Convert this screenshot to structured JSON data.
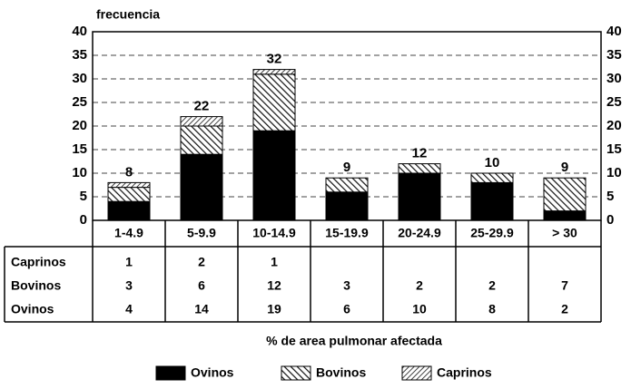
{
  "chart_data": {
    "type": "stacked_bar",
    "y_label": "frecuencia",
    "x_label": "% de area pulmonar afectada",
    "categories": [
      "1-4.9",
      "5-9.9",
      "10-14.9",
      "15-19.9",
      "20-24.9",
      "25-29.9",
      "> 30"
    ],
    "series": [
      {
        "name": "Ovinos",
        "color": "#000000",
        "values": [
          4,
          14,
          19,
          6,
          10,
          8,
          2
        ]
      },
      {
        "name": "Bovinos",
        "color": "#111111",
        "values": [
          3,
          6,
          12,
          3,
          2,
          2,
          7
        ]
      },
      {
        "name": "Caprinos",
        "color": "#111111",
        "values": [
          1,
          2,
          1,
          null,
          null,
          null,
          null
        ]
      }
    ],
    "totals": [
      8,
      22,
      32,
      9,
      12,
      10,
      9
    ],
    "ylim": [
      0,
      40
    ],
    "yticks": [
      0,
      5,
      10,
      15,
      20,
      25,
      30,
      35,
      40
    ],
    "grid": true
  }
}
